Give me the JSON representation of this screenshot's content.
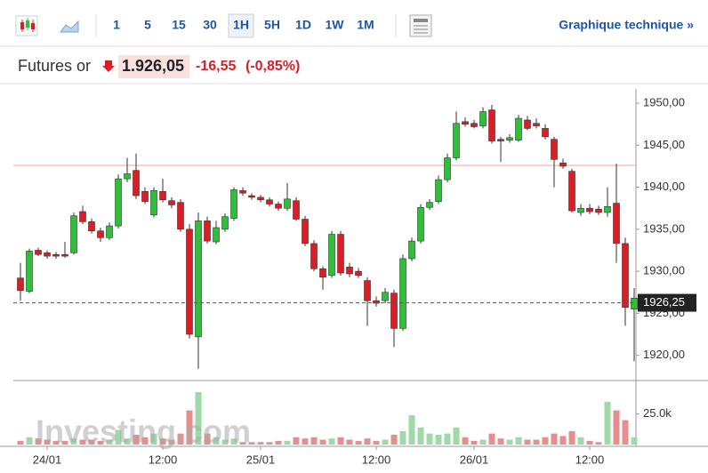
{
  "toolbar": {
    "intervals": [
      "1",
      "5",
      "15",
      "30",
      "1H",
      "5H",
      "1D",
      "1W",
      "1M"
    ],
    "active": 4,
    "link": "Graphique technique »"
  },
  "header": {
    "name": "Futures or",
    "price": "1.926,05",
    "change": "-16,55",
    "change_pct": "(-0,85%)"
  },
  "watermark": "Investing.com",
  "chart_data": {
    "type": "candlestick",
    "categories": [
      null,
      null,
      null,
      "24/01",
      null,
      null,
      null,
      null,
      null,
      null,
      null,
      null,
      null,
      null,
      null,
      null,
      "12:00",
      null,
      null,
      null,
      null,
      null,
      null,
      null,
      null,
      null,
      null,
      "25/01",
      null,
      null,
      null,
      null,
      null,
      null,
      null,
      null,
      null,
      null,
      null,
      null,
      "12:00",
      null,
      null,
      null,
      null,
      null,
      null,
      null,
      null,
      null,
      null,
      "26/01",
      null,
      null,
      null,
      null,
      null,
      null,
      null,
      null,
      null,
      null,
      null,
      null,
      "12:00",
      null,
      null,
      null,
      null,
      null
    ],
    "open": [
      1929.2,
      1927.6,
      1932.5,
      1932.2,
      1932.0,
      1932.0,
      1932.2,
      1937.1,
      1935.9,
      1934.8,
      1934.0,
      1935.4,
      1941.0,
      1942.0,
      1939.5,
      1936.7,
      1939.5,
      1938.4,
      1938.2,
      1935.0,
      1922.2,
      1936.0,
      1933.5,
      1935.0,
      1936.3,
      1939.6,
      1939.0,
      1938.8,
      1938.5,
      1938.0,
      1937.5,
      1938.4,
      1936.2,
      1933.3,
      1930.3,
      1929.5,
      1934.4,
      1930.5,
      1930.0,
      1928.9,
      1926.5,
      1926.5,
      1927.4,
      1923.2,
      1931.5,
      1933.6,
      1937.6,
      1938.3,
      1940.9,
      1943.5,
      1947.8,
      1947.6,
      1947.3,
      1949.2,
      1945.7,
      1945.6,
      1945.6,
      1948.0,
      1947.6,
      1947.0,
      1945.7,
      1942.9,
      1941.9,
      1937.0,
      1937.5,
      1937.4,
      1937.0,
      1938.1,
      1933.3,
      1925.5
    ],
    "high": [
      1931.0,
      1932.7,
      1932.8,
      1932.5,
      1932.3,
      1933.5,
      1937.0,
      1937.8,
      1936.3,
      1935.2,
      1935.8,
      1941.5,
      1943.5,
      1944.0,
      1940.0,
      1940.0,
      1941.0,
      1938.8,
      1938.6,
      1935.6,
      1937.0,
      1936.5,
      1936.0,
      1936.9,
      1940.0,
      1940.0,
      1939.3,
      1939.1,
      1938.8,
      1938.3,
      1940.5,
      1938.8,
      1936.6,
      1933.7,
      1930.6,
      1934.8,
      1934.8,
      1931.0,
      1930.4,
      1929.3,
      1927.0,
      1928.0,
      1927.8,
      1932.0,
      1934.0,
      1938.0,
      1938.6,
      1941.4,
      1944.0,
      1949.0,
      1948.3,
      1948.0,
      1949.5,
      1949.8,
      1946.0,
      1946.3,
      1948.6,
      1948.5,
      1948.2,
      1947.5,
      1946.0,
      1943.4,
      1942.2,
      1938.0,
      1938.0,
      1937.8,
      1940.0,
      1942.8,
      1934.0,
      1928.0
    ],
    "low": [
      1926.5,
      1927.4,
      1931.8,
      1931.5,
      1931.5,
      1931.6,
      1932.0,
      1935.6,
      1934.5,
      1933.5,
      1933.7,
      1935.1,
      1940.6,
      1938.6,
      1938.0,
      1936.4,
      1938.2,
      1937.5,
      1934.7,
      1922.0,
      1918.4,
      1933.3,
      1933.2,
      1934.7,
      1936.0,
      1939.0,
      1938.5,
      1938.2,
      1937.7,
      1937.2,
      1937.2,
      1936.0,
      1933.0,
      1930.0,
      1927.8,
      1929.2,
      1929.5,
      1929.3,
      1929.2,
      1923.5,
      1925.8,
      1926.2,
      1921.0,
      1922.9,
      1931.2,
      1933.3,
      1937.3,
      1938.0,
      1940.6,
      1943.2,
      1947.2,
      1947.0,
      1947.0,
      1945.2,
      1943.0,
      1945.3,
      1945.4,
      1946.8,
      1947.0,
      1945.7,
      1940.0,
      1942.2,
      1937.0,
      1936.6,
      1936.8,
      1936.7,
      1936.5,
      1931.0,
      1923.5,
      1919.3
    ],
    "close": [
      1927.7,
      1932.4,
      1932.0,
      1931.8,
      1931.8,
      1931.8,
      1936.6,
      1935.9,
      1934.8,
      1934.0,
      1935.4,
      1941.0,
      1941.6,
      1939.0,
      1938.3,
      1939.6,
      1938.5,
      1937.9,
      1935.0,
      1922.5,
      1936.0,
      1933.6,
      1935.2,
      1936.5,
      1939.7,
      1939.3,
      1938.8,
      1938.5,
      1938.0,
      1937.5,
      1938.6,
      1936.2,
      1933.3,
      1930.3,
      1929.3,
      1934.4,
      1929.8,
      1929.7,
      1929.5,
      1926.5,
      1926.2,
      1927.5,
      1923.2,
      1931.5,
      1933.6,
      1937.6,
      1938.2,
      1940.9,
      1943.5,
      1947.6,
      1947.5,
      1947.2,
      1949.0,
      1945.5,
      1945.5,
      1945.9,
      1948.2,
      1947.0,
      1947.3,
      1946.0,
      1943.3,
      1942.5,
      1937.2,
      1937.5,
      1937.1,
      1937.0,
      1937.7,
      1933.3,
      1925.7,
      1926.8
    ],
    "volume": [
      3000,
      6000,
      5000,
      4000,
      3000,
      3000,
      5000,
      4000,
      4000,
      3000,
      4000,
      12000,
      5000,
      8000,
      6000,
      9000,
      5000,
      4000,
      9000,
      28000,
      43000,
      9000,
      6000,
      4000,
      5000,
      2000,
      2000,
      2000,
      2000,
      3000,
      3000,
      6000,
      5000,
      6000,
      4000,
      5000,
      6000,
      4000,
      3000,
      5000,
      3000,
      4000,
      8000,
      11000,
      24000,
      14000,
      9000,
      8000,
      9000,
      14000,
      6000,
      3000,
      4000,
      9000,
      5000,
      4000,
      6000,
      4000,
      4000,
      6000,
      9000,
      7000,
      11000,
      6000,
      3000,
      2000,
      35000,
      28000,
      20000,
      6000
    ],
    "up_color": "#2fbf3a",
    "down_color": "#d91e26",
    "ylim": [
      1917,
      1951.7
    ],
    "yticks": [
      {
        "value": 1920,
        "label": "1920,00"
      },
      {
        "value": 1925,
        "label": "1925,00"
      },
      {
        "value": 1930,
        "label": "1930,00"
      },
      {
        "value": 1935,
        "label": "1935,00"
      },
      {
        "value": 1940,
        "label": "1940,00"
      },
      {
        "value": 1945,
        "label": "1945,00"
      },
      {
        "value": 1950,
        "label": "1950,00"
      }
    ],
    "vlim": [
      0,
      51000
    ],
    "vticks": [
      {
        "value": 25000,
        "label": "25.0k"
      }
    ],
    "last_price": {
      "value": 1926.25,
      "label": "1926,25"
    },
    "prev_close": 1942.6
  }
}
